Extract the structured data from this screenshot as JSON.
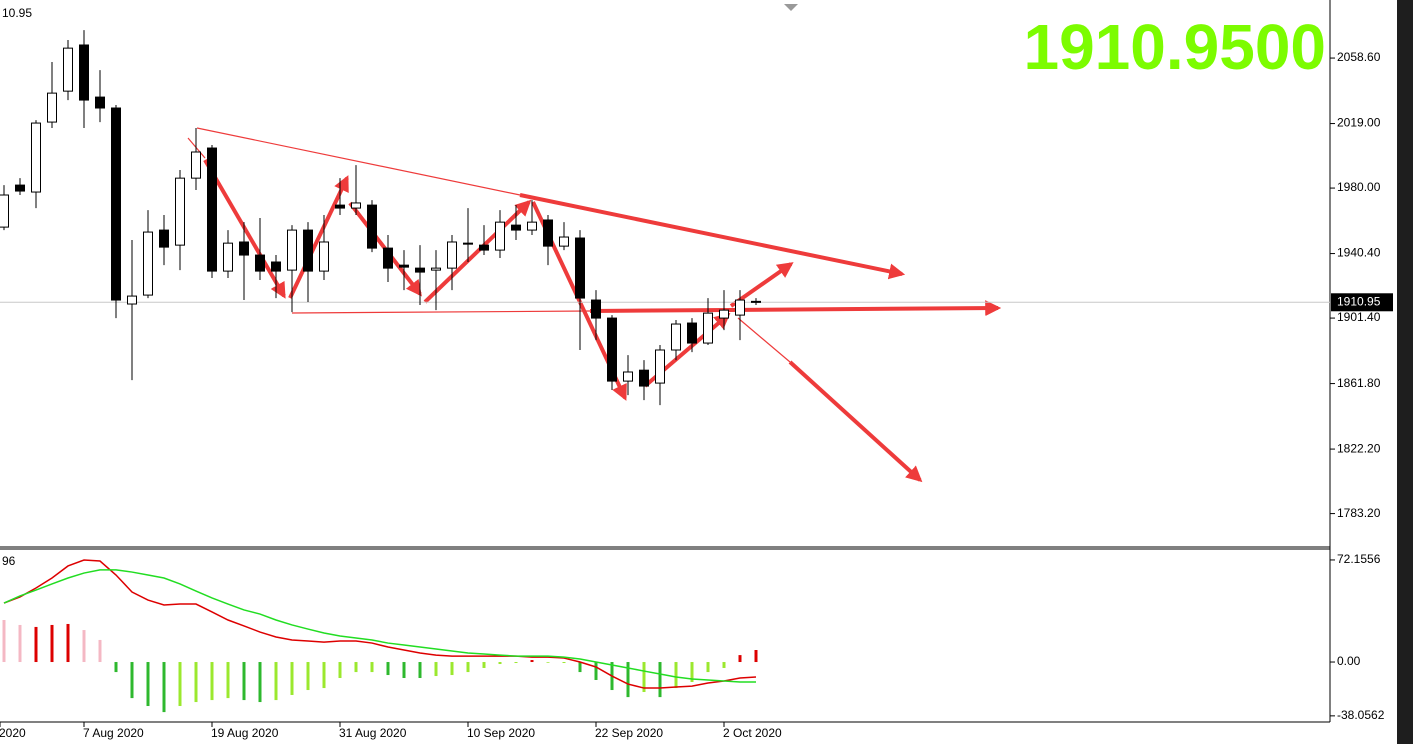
{
  "chart_data": [
    {
      "type": "candlestick",
      "corner_label": "10.95",
      "big_label": "1910.9500",
      "current_price": {
        "value": 1910.95,
        "label": "1910.95"
      },
      "ylim": [
        1763.0,
        2093.7
      ],
      "yticks": [
        {
          "value": 2058.6,
          "label": "2058.60"
        },
        {
          "value": 2019.0,
          "label": "2019.00"
        },
        {
          "value": 1980.0,
          "label": "1980.00"
        },
        {
          "value": 1940.4,
          "label": "1940.40"
        },
        {
          "value": 1901.4,
          "label": "1901.40"
        },
        {
          "value": 1861.8,
          "label": "1861.80"
        },
        {
          "value": 1822.2,
          "label": "1822.20"
        },
        {
          "value": 1783.2,
          "label": "1783.20"
        }
      ],
      "xticks": [
        {
          "value": -0.25,
          "label": "2020"
        },
        {
          "value": 5,
          "label": "7 Aug 2020"
        },
        {
          "value": 13,
          "label": "19 Aug 2020"
        },
        {
          "value": 21,
          "label": "31 Aug 2020"
        },
        {
          "value": 29,
          "label": "10 Sep 2020"
        },
        {
          "value": 37,
          "label": "22 Sep 2020"
        },
        {
          "value": 45,
          "label": "2 Oct 2020"
        }
      ],
      "open": [
        1956.4,
        1981.8,
        1977.6,
        2019.9,
        2038.6,
        2066.5,
        2035.0,
        2028.4,
        1909.9,
        1915.3,
        1954.6,
        1945.5,
        1986.0,
        2004.2,
        1929.8,
        1947.4,
        1939.5,
        1935.3,
        1930.4,
        1954.6,
        1929.8,
        1969.7,
        1967.9,
        1969.7,
        1943.7,
        1933.4,
        1931.6,
        1930.4,
        1931.6,
        1946.7,
        1945.5,
        1942.5,
        1957.6,
        1954.6,
        1960.7,
        1944.9,
        1949.8,
        1912.3,
        1901.4,
        1863.3,
        1869.9,
        1862.1,
        1882.1,
        1898.4,
        1886.3,
        1901.4,
        1903.2,
        1911.5
      ],
      "high": [
        1981.8,
        1986.0,
        2021.1,
        2056.2,
        2069.5,
        2075.5,
        2051.3,
        2030.2,
        1948.6,
        1966.7,
        1963.7,
        1990.9,
        2016.3,
        2006.0,
        1954.6,
        1959.4,
        1961.9,
        1939.5,
        1957.6,
        1959.4,
        1963.7,
        1986.0,
        1993.9,
        1972.7,
        1951.6,
        1942.5,
        1945.5,
        1942.5,
        1951.6,
        1967.9,
        1957.6,
        1966.7,
        1969.7,
        1972.7,
        1963.7,
        1959.4,
        1954.6,
        1918.3,
        1903.2,
        1879.0,
        1876.0,
        1885.1,
        1900.2,
        1901.4,
        1913.5,
        1918.3,
        1918.3,
        1913.5
      ],
      "low": [
        1954.6,
        1975.8,
        1967.9,
        2016.3,
        2033.2,
        2016.3,
        2019.9,
        1901.4,
        1863.9,
        1913.5,
        1933.4,
        1930.4,
        1978.8,
        1925.6,
        1925.6,
        1912.3,
        1924.4,
        1913.5,
        1905.0,
        1911.1,
        1924.4,
        1963.7,
        1963.7,
        1941.3,
        1923.2,
        1918.3,
        1909.3,
        1906.2,
        1918.3,
        1935.3,
        1939.5,
        1937.7,
        1948.6,
        1951.6,
        1933.4,
        1942.5,
        1882.1,
        1888.1,
        1857.9,
        1854.8,
        1851.8,
        1848.8,
        1876.0,
        1880.8,
        1885.1,
        1894.1,
        1888.1,
        1909.3
      ],
      "close": [
        1975.8,
        1978.2,
        2019.3,
        2037.4,
        2064.6,
        2033.2,
        2028.4,
        1912.3,
        1914.7,
        1953.4,
        1944.3,
        1986.0,
        2001.8,
        1929.8,
        1946.7,
        1939.5,
        1929.8,
        1929.8,
        1954.6,
        1929.8,
        1947.4,
        1967.9,
        1971.0,
        1943.7,
        1931.6,
        1932.2,
        1929.2,
        1931.6,
        1947.4,
        1946.1,
        1942.5,
        1959.4,
        1954.6,
        1959.4,
        1944.9,
        1950.4,
        1913.5,
        1901.4,
        1863.3,
        1868.8,
        1860.3,
        1882.1,
        1897.8,
        1886.3,
        1904.4,
        1906.2,
        1912.3,
        1910.95
      ]
    },
    {
      "type": "macd",
      "corner_label": "96",
      "ylim": [
        -42.4,
        79.9
      ],
      "yticks": [
        72.1556,
        {
          "value": 0,
          "label": "0.00"
        },
        -38.0562
      ],
      "histogram": [
        29.7,
        26.2,
        24.8,
        26.2,
        26.9,
        22.6,
        15.6,
        -7.1,
        -25.5,
        -31.1,
        -35.4,
        -31.1,
        -28.3,
        -26.9,
        -25.5,
        -26.9,
        -28.3,
        -26.9,
        -23.3,
        -19.8,
        -18.4,
        -11.3,
        -7.1,
        -7.1,
        -9.2,
        -11.3,
        -11.3,
        -9.9,
        -9.2,
        -7.1,
        -4.2,
        -1.4,
        -0.7,
        1.4,
        -0.5,
        -0.7,
        -7.1,
        -12.7,
        -19.8,
        -24.8,
        -21.2,
        -24.8,
        -18.4,
        -14.1,
        -7.1,
        -4.2,
        4.9,
        8.5
      ],
      "histogram_colors": [
        "#f4b8c4",
        "#f4b8c4",
        "#dd0000",
        "#dd0000",
        "#dd0000",
        "#f4b8c4",
        "#f4b8c4",
        "#2eb82e",
        "#2eb82e",
        "#2eb82e",
        "#2eb82e",
        "#9be82e",
        "#9be82e",
        "#9be82e",
        "#9be82e",
        "#2eb82e",
        "#2eb82e",
        "#9be82e",
        "#9be82e",
        "#9be82e",
        "#9be82e",
        "#9be82e",
        "#9be82e",
        "#9be82e",
        "#2eb82e",
        "#2eb82e",
        "#2eb82e",
        "#9be82e",
        "#9be82e",
        "#9be82e",
        "#9be82e",
        "#9be82e",
        "#9be82e",
        "#dd0000",
        "#9be82e",
        "#9be82e",
        "#2eb82e",
        "#2eb82e",
        "#2eb82e",
        "#2eb82e",
        "#9be82e",
        "#2eb82e",
        "#9be82e",
        "#9be82e",
        "#9be82e",
        "#9be82e",
        "#dd0000",
        "#dd0000"
      ],
      "series": [
        {
          "color": "#dd0000",
          "values": [
            41.7,
            46.0,
            52.3,
            59.4,
            67.9,
            72.1,
            71.4,
            61.5,
            49.5,
            43.8,
            40.3,
            41.0,
            41.0,
            35.4,
            29.7,
            25.5,
            21.2,
            17.7,
            15.6,
            14.9,
            14.1,
            14.9,
            14.9,
            13.4,
            10.6,
            8.5,
            6.4,
            4.9,
            4.2,
            4.2,
            4.2,
            4.2,
            4.2,
            3.5,
            3.5,
            2.8,
            0,
            -3.5,
            -9.9,
            -15.6,
            -18.4,
            -18.4,
            -17.7,
            -17.0,
            -14.8,
            -13.4,
            -11.3,
            -10.6
          ]
        },
        {
          "color": "#22dd22",
          "values": [
            41.7,
            46.7,
            50.9,
            55.2,
            59.4,
            62.9,
            65.1,
            65.1,
            63.6,
            61.5,
            59.4,
            55.2,
            50.2,
            45.3,
            41.0,
            36.8,
            33.9,
            29.7,
            26.2,
            23.3,
            20.5,
            18.4,
            17.0,
            15.6,
            13.4,
            12.0,
            10.6,
            9.2,
            7.8,
            6.4,
            5.7,
            4.9,
            4.2,
            4.2,
            4.2,
            3.5,
            2.1,
            0,
            -2.1,
            -4.2,
            -6.4,
            -8.5,
            -10.6,
            -12.0,
            -12.7,
            -13.4,
            -14.1,
            -14.1
          ]
        }
      ]
    }
  ]
}
